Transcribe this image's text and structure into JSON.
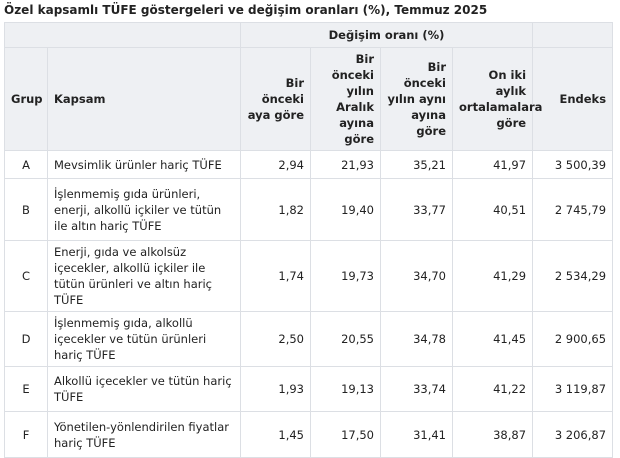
{
  "title": "Özel kapsamlı TÜFE göstergeleri ve değişim oranları (%), Temmuz 2025",
  "table": {
    "group_header": "Değişim oranı (%)",
    "columns": [
      "Grup",
      "Kapsam",
      "Bir önceki aya göre",
      "Bir önceki yılın Aralık ayına göre",
      "Bir önceki yılın aynı ayına göre",
      "On iki aylık ortalamalara göre",
      "Endeks"
    ],
    "rows": [
      [
        "A",
        "Mevsimlik ürünler hariç TÜFE",
        "2,94",
        "21,93",
        "35,21",
        "41,97",
        "3 500,39"
      ],
      [
        "B",
        "İşlenmemiş gıda ürünleri, enerji, alkollü içkiler ve tütün ile altın hariç TÜFE",
        "1,82",
        "19,40",
        "33,77",
        "40,51",
        "2 745,79"
      ],
      [
        "C",
        "Enerji, gıda ve alkolsüz içecekler, alkollü içkiler ile tütün ürünleri ve altın hariç TÜFE",
        "1,74",
        "19,73",
        "34,70",
        "41,29",
        "2 534,29"
      ],
      [
        "D",
        "İşlenmemiş gıda, alkollü içecekler ve tütün ürünleri hariç TÜFE",
        "2,50",
        "20,55",
        "34,78",
        "41,45",
        "2 900,65"
      ],
      [
        "E",
        "Alkollü içecekler ve tütün hariç TÜFE",
        "1,93",
        "19,13",
        "33,74",
        "41,22",
        "3 119,87"
      ],
      [
        "F",
        "Yönetilen-yönlendirilen fiyatlar hariç TÜFE",
        "1,45",
        "17,50",
        "31,41",
        "38,87",
        "3 206,87"
      ]
    ]
  }
}
